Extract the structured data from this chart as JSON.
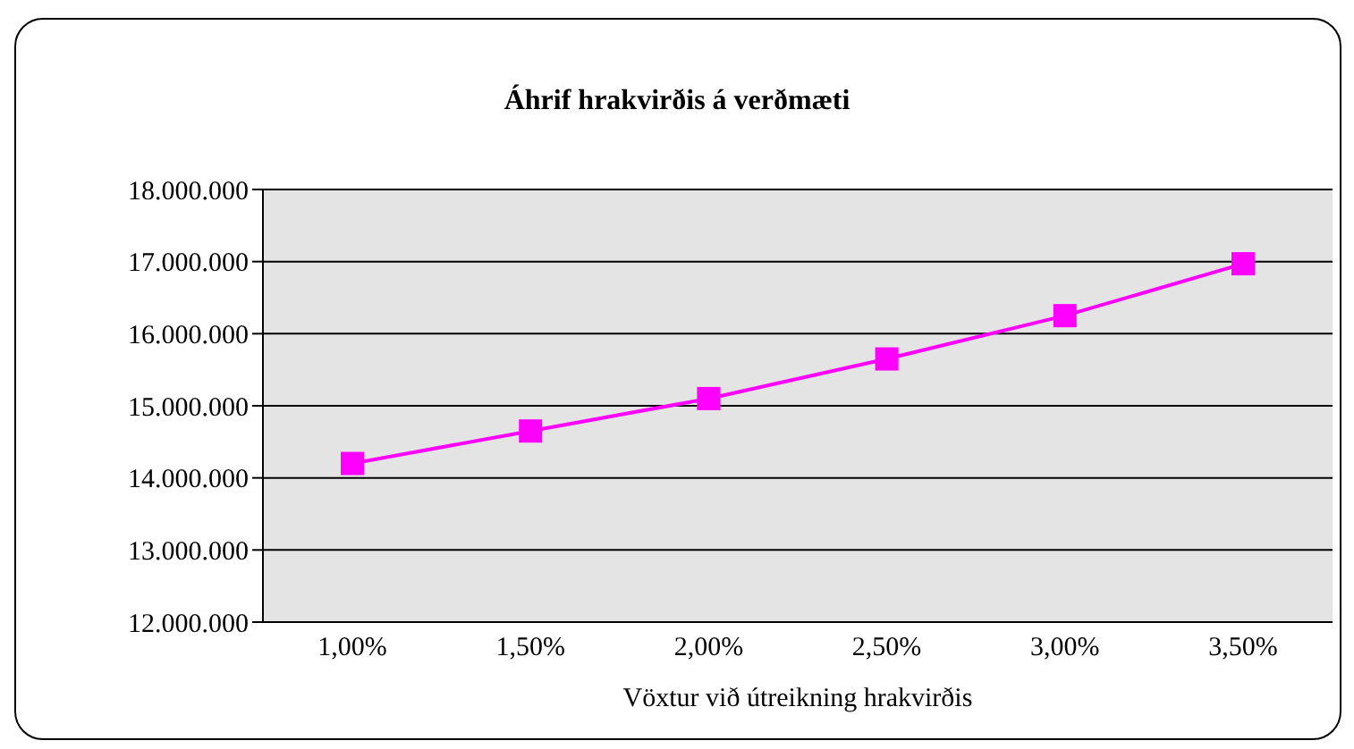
{
  "chart_data": {
    "type": "line",
    "title": "Áhrif hrakvirðis á verðmæti",
    "xlabel": "Vöxtur við útreikning hrakvirðis",
    "categories": [
      "1,00%",
      "1,50%",
      "2,00%",
      "2,50%",
      "3,00%",
      "3,50%"
    ],
    "series": [
      {
        "color": "#ff00ff",
        "values": [
          14200000,
          14650000,
          15100000,
          15650000,
          16250000,
          16970000
        ]
      }
    ],
    "ylim": [
      12000000,
      18000000
    ],
    "yticks": [
      {
        "value": 12000000,
        "label": "12.000.000"
      },
      {
        "value": 13000000,
        "label": "13.000.000"
      },
      {
        "value": 14000000,
        "label": "14.000.000"
      },
      {
        "value": 15000000,
        "label": "15.000.000"
      },
      {
        "value": 16000000,
        "label": "16.000.000"
      },
      {
        "value": 17000000,
        "label": "17.000.000"
      },
      {
        "value": 18000000,
        "label": "18.000.000"
      }
    ],
    "grid": "y",
    "legend": false,
    "marker": "square",
    "line_style": "solid"
  }
}
